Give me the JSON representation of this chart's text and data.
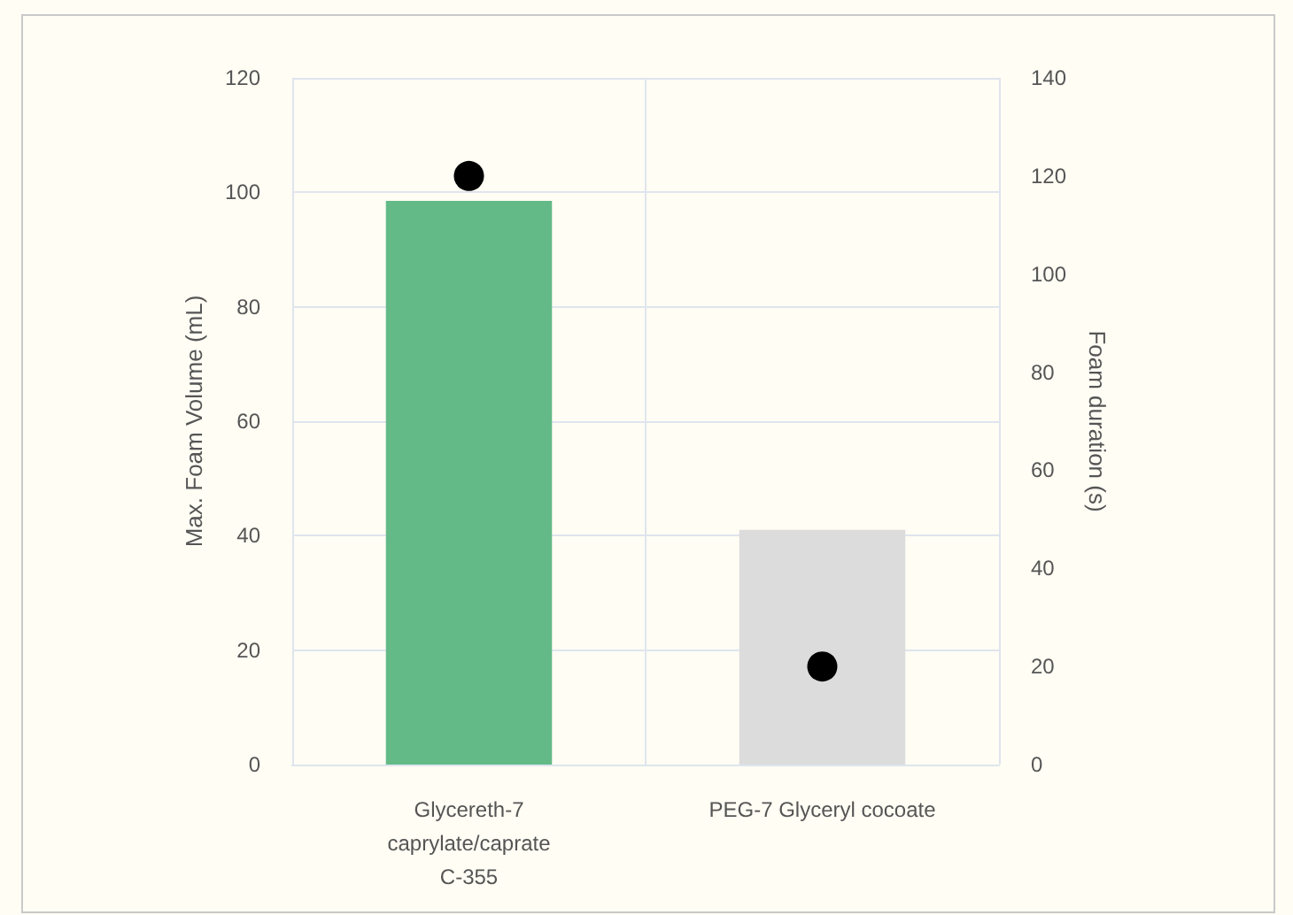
{
  "chart_data": {
    "type": "bar",
    "categories": [
      "Glycereth-7\ncaprylate/caprate\nC-355",
      "PEG-7 Glyceryl cocoate"
    ],
    "series": [
      {
        "colors": [
          "#63ba87",
          "#dcdcdc"
        ],
        "values": [
          98.5,
          41
        ]
      },
      {
        "type": "scatter",
        "axis": "y2",
        "color": "#000000",
        "x": [
          "Glycereth-7\ncaprylate/caprate\nC-355",
          "PEG-7 Glyceryl cocoate"
        ],
        "values": [
          120,
          20
        ]
      }
    ],
    "ylabel": "Max. Foam Volume (mL)",
    "y2label": "Foam duration (s)",
    "ylim": [
      0,
      120
    ],
    "yticks": [
      0,
      20,
      40,
      60,
      80,
      100,
      120
    ],
    "y2lim": [
      0,
      140
    ],
    "y2ticks": [
      0,
      20,
      40,
      60,
      80,
      100,
      120,
      140
    ],
    "grid": true,
    "marker": "circle"
  }
}
